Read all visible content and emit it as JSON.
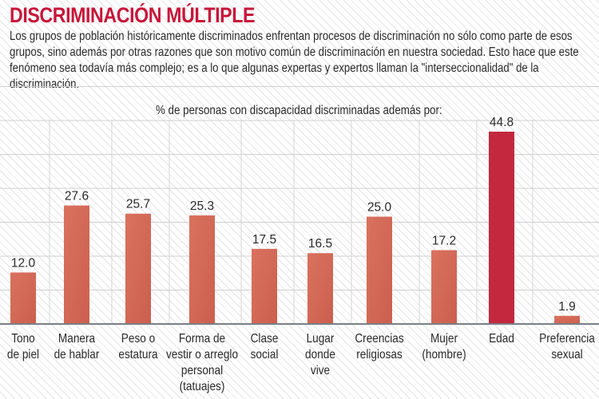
{
  "title": "DISCRIMINACIÓN MÚLTIPLE",
  "intro": "Los grupos de población históricamente discriminados enfrentan procesos de discriminación no sólo como parte de esos grupos, sino además por otras razones que son motivo común de discriminación en nuestra sociedad. Esto hace que este fenómeno sea todavía más complejo; es a lo que algunas expertas y expertos llaman la \"interseccionalidad\" de la discriminación.",
  "chart_data": {
    "type": "bar",
    "title": "% de personas con discapacidad discriminadas además por:",
    "categories": [
      [
        "Tono",
        "de piel"
      ],
      [
        "Manera",
        "de hablar"
      ],
      [
        "Peso o",
        "estatura"
      ],
      [
        "Forma de",
        "vestir o arreglo",
        "personal",
        "(tatuajes)"
      ],
      [
        "Clase",
        "social"
      ],
      [
        "Lugar",
        "donde",
        "vive"
      ],
      [
        "Creencias",
        "religiosas"
      ],
      [
        "Mujer",
        "(hombre)"
      ],
      [
        "Edad"
      ],
      [
        "Preferencia",
        "sexual"
      ]
    ],
    "values": [
      12.0,
      27.6,
      25.7,
      25.3,
      17.5,
      16.5,
      25.0,
      17.2,
      44.8,
      1.9
    ],
    "value_labels": [
      "12.0",
      "27.6",
      "25.7",
      "25.3",
      "17.5",
      "16.5",
      "25.0",
      "17.2",
      "44.8",
      "1.9"
    ],
    "highlight_index": 8,
    "colors": {
      "bar": "#d9725e",
      "bar_shade": "#cc5f4f",
      "highlight": "#c4283f",
      "title": "#c8163a"
    },
    "ylim": [
      0,
      45
    ],
    "grid": true
  }
}
